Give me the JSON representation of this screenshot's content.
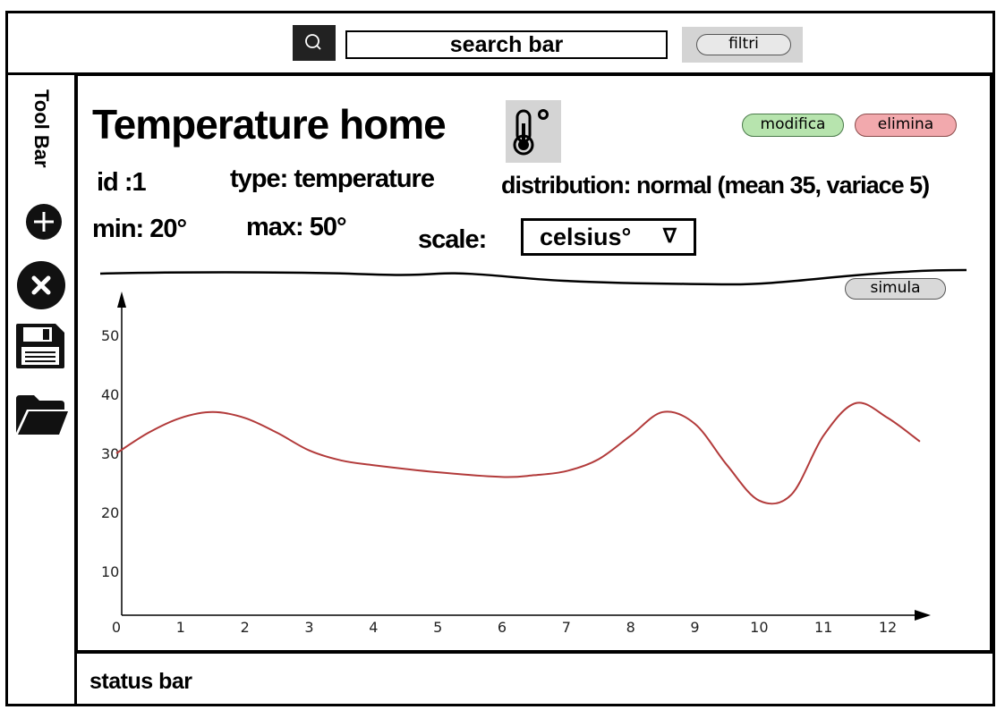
{
  "topbar": {
    "search_icon": "search-icon",
    "search_text": "search bar",
    "filter_label": "filtri"
  },
  "toolbar": {
    "label": "Tool Bar",
    "icons": [
      "add-icon",
      "close-icon",
      "save-icon",
      "folder-icon"
    ]
  },
  "sensor": {
    "title": "Temperature home",
    "icon": "thermometer-icon",
    "id_text": "id :1",
    "type_text": "type: temperature",
    "distribution_text": "distribution: normal (mean 35, variace 5)",
    "min_text": "min: 20°",
    "max_text": "max: 50°",
    "scale_label": "scale:",
    "scale_value": "celsius°",
    "scale_arrow": "∇"
  },
  "actions": {
    "edit_label": "modifica",
    "delete_label": "elimina",
    "simulate_label": "simula"
  },
  "colors": {
    "edit": "#b7e4ae",
    "delete": "#f2a9ad",
    "line": "#b23a3a"
  },
  "chart_data": {
    "type": "line",
    "x_ticks": [
      "0",
      "1",
      "2",
      "3",
      "4",
      "5",
      "6",
      "7",
      "8",
      "9",
      "10",
      "11",
      "12"
    ],
    "y_ticks": [
      "10",
      "20",
      "30",
      "40",
      "50"
    ],
    "xlim": [
      0,
      12.5
    ],
    "ylim": [
      0,
      55
    ],
    "series": [
      {
        "color": "#b23a3a",
        "x": [
          0,
          0.5,
          1,
          1.5,
          2,
          2.5,
          3,
          3.5,
          4,
          5,
          6,
          6.5,
          7,
          7.5,
          8,
          8.5,
          9,
          9.5,
          10,
          10.5,
          11,
          11.5,
          12,
          12.5
        ],
        "y": [
          30,
          33.5,
          36,
          37,
          36,
          33.5,
          30.5,
          28.8,
          28,
          26.8,
          26,
          26.3,
          27,
          29,
          33,
          37,
          35,
          28,
          22,
          23,
          33,
          38.5,
          36,
          32
        ]
      }
    ]
  },
  "status": {
    "text": "status bar"
  }
}
